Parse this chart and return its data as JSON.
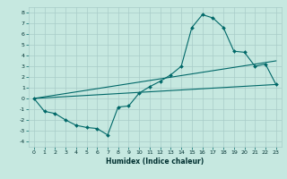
{
  "xlabel": "Humidex (Indice chaleur)",
  "background_color": "#c6e8e0",
  "grid_color": "#a8ccc8",
  "line_color": "#006868",
  "xlim": [
    -0.5,
    23.5
  ],
  "ylim": [
    -4.5,
    8.5
  ],
  "xticks": [
    0,
    1,
    2,
    3,
    4,
    5,
    6,
    7,
    8,
    9,
    10,
    11,
    12,
    13,
    14,
    15,
    16,
    17,
    18,
    19,
    20,
    21,
    22,
    23
  ],
  "yticks": [
    -4,
    -3,
    -2,
    -1,
    0,
    1,
    2,
    3,
    4,
    5,
    6,
    7,
    8
  ],
  "series1_x": [
    0,
    1,
    2,
    3,
    4,
    5,
    6,
    7,
    8,
    9,
    10,
    11,
    12,
    13,
    14,
    15,
    16,
    17,
    18,
    19,
    20,
    21,
    22,
    23
  ],
  "series1_y": [
    0,
    -1.2,
    -1.4,
    -2.0,
    -2.5,
    -2.7,
    -2.8,
    -3.4,
    -0.8,
    -0.7,
    0.5,
    1.1,
    1.6,
    2.2,
    3.0,
    6.6,
    7.8,
    7.5,
    6.6,
    4.4,
    4.3,
    3.0,
    3.2,
    1.3
  ],
  "series2_x": [
    0,
    23
  ],
  "series2_y": [
    0,
    1.3
  ],
  "series3_x": [
    0,
    23
  ],
  "series3_y": [
    0,
    3.5
  ],
  "xlabel_fontsize": 5.5,
  "tick_fontsize": 4.5,
  "marker_size": 2.0,
  "line_width": 0.8
}
